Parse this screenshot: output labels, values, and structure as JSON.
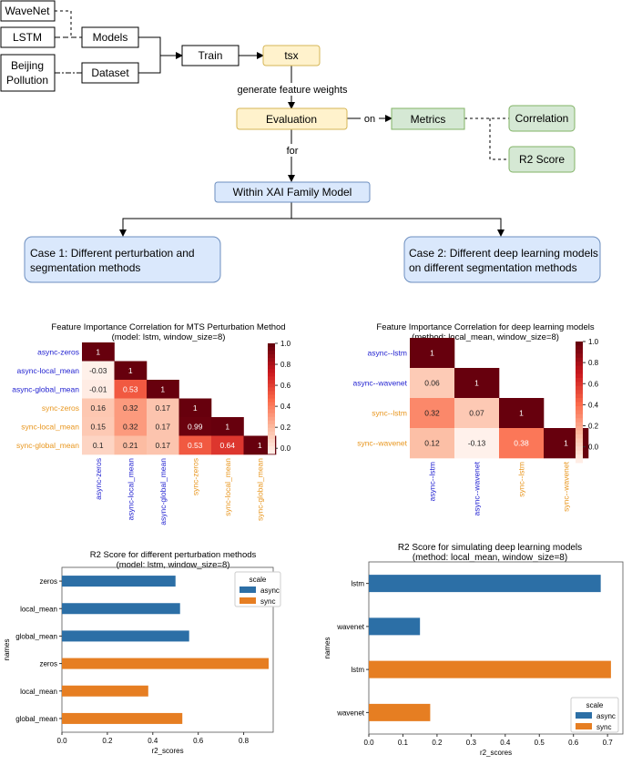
{
  "flowchart": {
    "wavenet": "WaveNet",
    "lstm": "LSTM",
    "beijing_line1": "Beijing",
    "beijing_line2": "Pollution",
    "models": "Models",
    "dataset": "Dataset",
    "train": "Train",
    "tsx": "tsx",
    "generate_label": "generate feature weights",
    "evaluation": "Evaluation",
    "on_label": "on",
    "metrics": "Metrics",
    "correlation": "Correlation",
    "r2_score": "R2 Score",
    "for_label": "for",
    "within": "Within XAI Family Model",
    "case1_line1": "Case 1: Different perturbation and",
    "case1_line2": "segmentation methods",
    "case2_line1": "Case 2: Different deep learning models",
    "case2_line2": "on different segmentation methods",
    "colors": {
      "yellow_fill": "#fff2cc",
      "yellow_stroke": "#d6b656",
      "green_fill": "#d5e8d4",
      "green_stroke": "#82b366",
      "blue_fill": "#dae8fc",
      "blue_stroke": "#6c8ebf"
    }
  },
  "chart_data": [
    {
      "type": "heatmap",
      "title": "Feature Importance Correlation for MTS Perturbation Method",
      "subtitle": "(model: lstm, window_size=8)",
      "labels": [
        "async-zeros",
        "async-local_mean",
        "async-global_mean",
        "sync-zeros",
        "sync-local_mean",
        "sync-global_mean"
      ],
      "label_colors": [
        "#1f1fd0",
        "#1f1fd0",
        "#1f1fd0",
        "#e8961e",
        "#e8961e",
        "#e8961e"
      ],
      "matrix": [
        [
          1
        ],
        [
          -0.03,
          1
        ],
        [
          -0.01,
          0.53,
          1
        ],
        [
          0.16,
          0.32,
          0.17,
          1
        ],
        [
          0.15,
          0.32,
          0.17,
          0.99,
          1
        ],
        [
          0.1,
          0.21,
          0.17,
          0.53,
          0.64,
          1
        ]
      ],
      "colorbar_ticks": [
        "1.0",
        "0.8",
        "0.6",
        "0.4",
        "0.2",
        "0.0"
      ],
      "vmin": -0.05,
      "vmax": 1.0
    },
    {
      "type": "heatmap",
      "title": "Feature Importance Correlation for deep learning models",
      "subtitle": "(method: local_mean, window_size=8)",
      "labels": [
        "async--lstm",
        "async--wavenet",
        "sync--lstm",
        "sync--wavenet"
      ],
      "label_colors": [
        "#1f1fd0",
        "#1f1fd0",
        "#e8961e",
        "#e8961e"
      ],
      "matrix": [
        [
          1
        ],
        [
          0.06,
          1
        ],
        [
          0.32,
          0.07,
          1
        ],
        [
          0.12,
          -0.13,
          0.38,
          1
        ]
      ],
      "colorbar_ticks": [
        "1.0",
        "0.8",
        "0.6",
        "0.4",
        "0.2",
        "0.0"
      ],
      "vmin": -0.15,
      "vmax": 1.0
    },
    {
      "type": "bar",
      "orientation": "horizontal",
      "title": "R2 Score for different perturbation methods",
      "subtitle": "(model: lstm, window_size=8)",
      "xlabel": "r2_scores",
      "ylabel": "names",
      "categories": [
        "zeros",
        "local_mean",
        "global_mean",
        "zeros",
        "local_mean",
        "global_mean"
      ],
      "series": [
        {
          "name": "async",
          "color": "#2c6fa6",
          "values": [
            0.5,
            0.52,
            0.56,
            null,
            null,
            null
          ]
        },
        {
          "name": "sync",
          "color": "#e67e22",
          "values": [
            null,
            null,
            null,
            0.91,
            0.38,
            0.53
          ]
        }
      ],
      "xlim": [
        0,
        0.93
      ],
      "xticks": [
        "0.0",
        "0.2",
        "0.4",
        "0.6",
        "0.8"
      ],
      "legend_title": "scale",
      "legend_position": "top-right"
    },
    {
      "type": "bar",
      "orientation": "horizontal",
      "title": "R2 Score for simulating deep learning models",
      "subtitle": "(method: local_mean, window_size=8)",
      "xlabel": "r2_scores",
      "ylabel": "names",
      "categories": [
        "lstm",
        "wavenet",
        "lstm",
        "wavenet"
      ],
      "series": [
        {
          "name": "async",
          "color": "#2c6fa6",
          "values": [
            0.68,
            0.15,
            null,
            null
          ]
        },
        {
          "name": "sync",
          "color": "#e67e22",
          "values": [
            null,
            null,
            0.71,
            0.18
          ]
        }
      ],
      "xlim": [
        0,
        0.745
      ],
      "xticks": [
        "0.0",
        "0.1",
        "0.2",
        "0.3",
        "0.4",
        "0.5",
        "0.6",
        "0.7"
      ],
      "legend_title": "scale",
      "legend_position": "bottom-right"
    }
  ]
}
